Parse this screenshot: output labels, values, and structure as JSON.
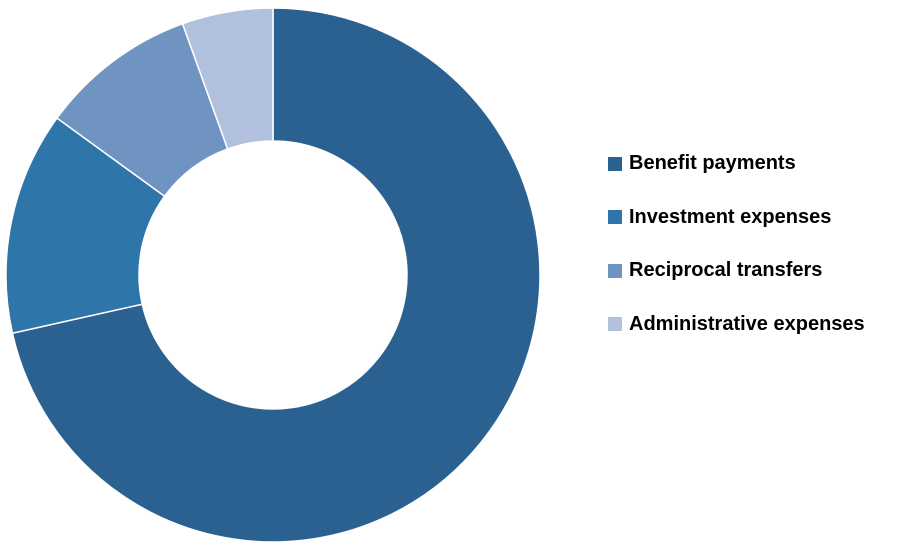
{
  "chart_data": {
    "type": "pie",
    "variant": "donut",
    "title": "",
    "legend_position": "right",
    "series": [
      {
        "name": "Benefit payments",
        "value": 71.5,
        "color": "#2b6190"
      },
      {
        "name": "Investment expenses",
        "value": 13.5,
        "color": "#2e75aa"
      },
      {
        "name": "Reciprocal transfers",
        "value": 9.5,
        "color": "#7094c2"
      },
      {
        "name": "Administrative expenses",
        "value": 5.5,
        "color": "#b0c0dd"
      }
    ]
  }
}
